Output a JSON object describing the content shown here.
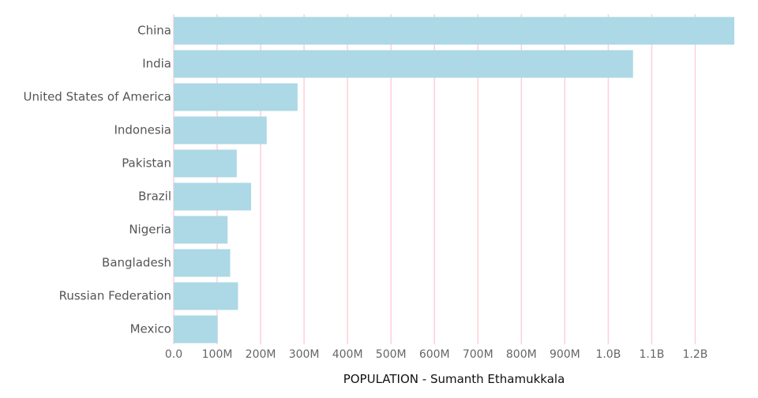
{
  "chart_data": {
    "type": "bar",
    "orientation": "horizontal",
    "categories": [
      "China",
      "India",
      "United States of America",
      "Indonesia",
      "Pakistan",
      "Brazil",
      "Nigeria",
      "Bangladesh",
      "Russian Federation",
      "Mexico"
    ],
    "values": [
      1290,
      1057,
      285,
      214,
      145,
      178,
      124,
      130,
      148,
      101
    ],
    "value_unit": "millions",
    "xlim": [
      0,
      1290
    ],
    "xticks": [
      0,
      100,
      200,
      300,
      400,
      500,
      600,
      700,
      800,
      900,
      1000,
      1100,
      1200
    ],
    "xtick_labels": [
      "0.0",
      "100M",
      "200M",
      "300M",
      "400M",
      "500M",
      "600M",
      "700M",
      "800M",
      "900M",
      "1.0B",
      "1.1B",
      "1.2B"
    ],
    "xlabel": "POPULATION - Sumanth Ethamukkala",
    "ylabel": "",
    "title": "",
    "grid": "vertical",
    "bar_color": "#add8e6",
    "grid_color": "#ffcfd8"
  }
}
